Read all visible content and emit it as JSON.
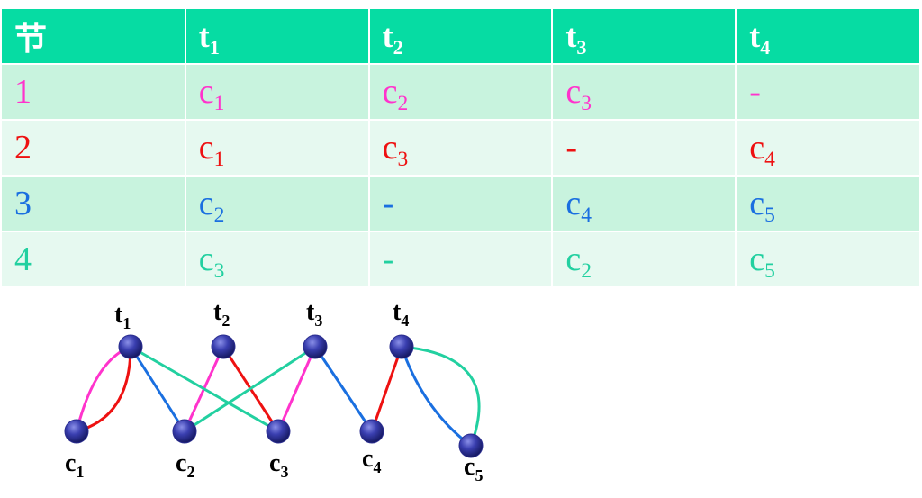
{
  "table": {
    "header": [
      {
        "base": "节",
        "sub": ""
      },
      {
        "base": "t",
        "sub": "1"
      },
      {
        "base": "t",
        "sub": "2"
      },
      {
        "base": "t",
        "sub": "3"
      },
      {
        "base": "t",
        "sub": "4"
      }
    ],
    "rows": [
      {
        "color": "#ff33cc",
        "cells": [
          {
            "base": "1",
            "sub": ""
          },
          {
            "base": "c",
            "sub": "1"
          },
          {
            "base": "c",
            "sub": "2"
          },
          {
            "base": "c",
            "sub": "3"
          },
          {
            "base": "-",
            "sub": ""
          }
        ]
      },
      {
        "color": "#ee1111",
        "cells": [
          {
            "base": "2",
            "sub": ""
          },
          {
            "base": "c",
            "sub": "1"
          },
          {
            "base": "c",
            "sub": "3"
          },
          {
            "base": "-",
            "sub": ""
          },
          {
            "base": "c",
            "sub": "4"
          }
        ]
      },
      {
        "color": "#1a6fe0",
        "cells": [
          {
            "base": "3",
            "sub": ""
          },
          {
            "base": "c",
            "sub": "2"
          },
          {
            "base": "-",
            "sub": ""
          },
          {
            "base": "c",
            "sub": "4"
          },
          {
            "base": "c",
            "sub": "5"
          }
        ]
      },
      {
        "color": "#22d0a0",
        "cells": [
          {
            "base": "4",
            "sub": ""
          },
          {
            "base": "c",
            "sub": "3"
          },
          {
            "base": "-",
            "sub": ""
          },
          {
            "base": "c",
            "sub": "2"
          },
          {
            "base": "c",
            "sub": "5"
          }
        ]
      }
    ]
  },
  "graph": {
    "node_color": "#2a2d8f",
    "teachers": [
      {
        "id": "t1",
        "base": "t",
        "sub": "1"
      },
      {
        "id": "t2",
        "base": "t",
        "sub": "2"
      },
      {
        "id": "t3",
        "base": "t",
        "sub": "3"
      },
      {
        "id": "t4",
        "base": "t",
        "sub": "4"
      }
    ],
    "classes": [
      {
        "id": "c1",
        "base": "c",
        "sub": "1"
      },
      {
        "id": "c2",
        "base": "c",
        "sub": "2"
      },
      {
        "id": "c3",
        "base": "c",
        "sub": "3"
      },
      {
        "id": "c4",
        "base": "c",
        "sub": "4"
      },
      {
        "id": "c5",
        "base": "c",
        "sub": "5"
      }
    ],
    "edges": [
      {
        "from": "t1",
        "to": "c1",
        "period": "1",
        "color": "#ff33cc"
      },
      {
        "from": "t2",
        "to": "c2",
        "period": "1",
        "color": "#ff33cc"
      },
      {
        "from": "t3",
        "to": "c3",
        "period": "1",
        "color": "#ff33cc"
      },
      {
        "from": "t1",
        "to": "c1",
        "period": "2",
        "color": "#ee1111"
      },
      {
        "from": "t2",
        "to": "c3",
        "period": "2",
        "color": "#ee1111"
      },
      {
        "from": "t4",
        "to": "c4",
        "period": "2",
        "color": "#ee1111"
      },
      {
        "from": "t1",
        "to": "c2",
        "period": "3",
        "color": "#1a6fe0"
      },
      {
        "from": "t3",
        "to": "c4",
        "period": "3",
        "color": "#1a6fe0"
      },
      {
        "from": "t4",
        "to": "c5",
        "period": "3",
        "color": "#1a6fe0"
      },
      {
        "from": "t1",
        "to": "c3",
        "period": "4",
        "color": "#22d0a0"
      },
      {
        "from": "t3",
        "to": "c2",
        "period": "4",
        "color": "#22d0a0"
      },
      {
        "from": "t4",
        "to": "c5",
        "period": "4",
        "color": "#22d0a0"
      }
    ]
  }
}
